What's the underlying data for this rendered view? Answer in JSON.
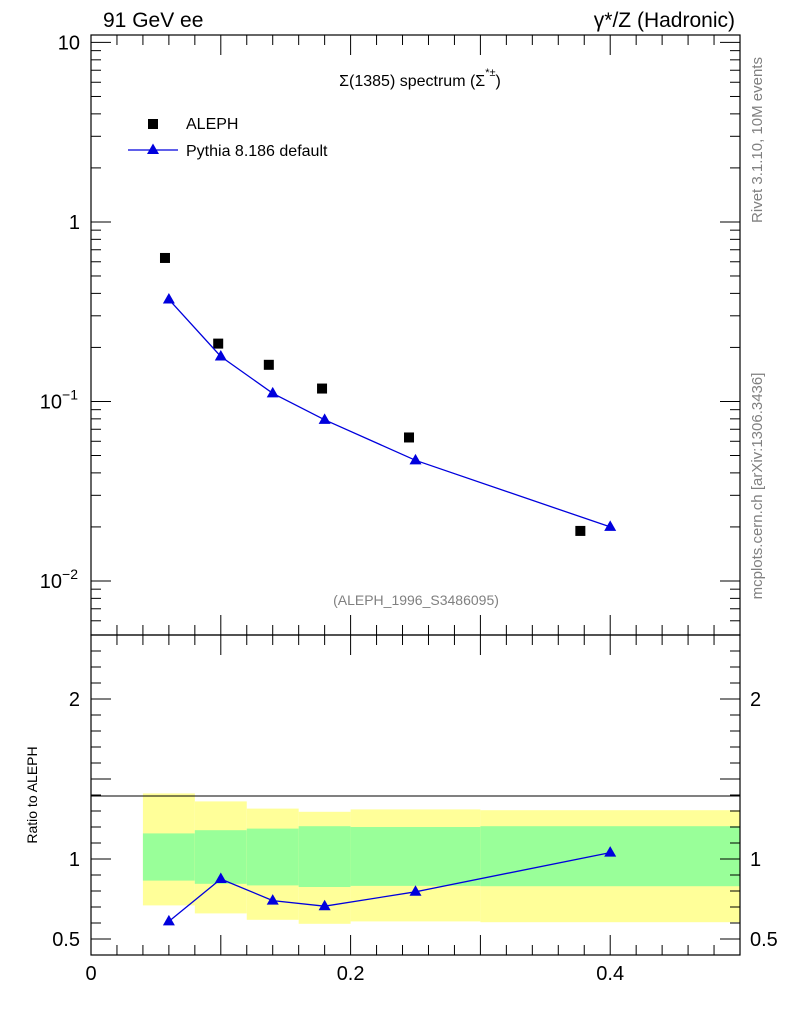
{
  "header": {
    "left": "91 GeV ee",
    "right": "γ*/Z (Hadronic)"
  },
  "side_labels": {
    "rivet": "Rivet 3.1.10,  10M events",
    "mcplots": "mcplots.cern.ch [arXiv:1306.3436]"
  },
  "colors": {
    "data": "#000000",
    "mc": "#0000dd",
    "band_inner": "#99ff99",
    "band_outer": "#ffff99"
  },
  "chart_data": [
    {
      "type": "scatter",
      "panel": "main",
      "title": "Σ(1385) spectrum (Σ*±)",
      "title_main": "Σ(1385) spectrum (Σ",
      "title_sup": "*±",
      "title_close": ")",
      "watermark": "(ALEPH_1996_S3486095)",
      "yscale": "log",
      "xlim": [
        0,
        0.5
      ],
      "ylim": [
        0.005,
        11
      ],
      "ytick_labels": [
        {
          "value": 10,
          "base": "10",
          "exp": ""
        },
        {
          "value": 1,
          "base": "1",
          "exp": ""
        },
        {
          "value": 0.1,
          "base": "10",
          "exp": "−1"
        },
        {
          "value": 0.01,
          "base": "10",
          "exp": "−2"
        }
      ],
      "legend": {
        "position": "top-left",
        "entries": [
          "ALEPH",
          "Pythia 8.186 default"
        ]
      },
      "series": [
        {
          "name": "ALEPH",
          "marker": "square",
          "x": [
            0.057,
            0.098,
            0.137,
            0.178,
            0.245,
            0.377
          ],
          "y": [
            0.63,
            0.21,
            0.16,
            0.118,
            0.063,
            0.019
          ]
        },
        {
          "name": "Pythia 8.186 default",
          "marker": "triangle",
          "x": [
            0.06,
            0.1,
            0.14,
            0.18,
            0.25,
            0.4
          ],
          "y": [
            0.37,
            0.178,
            0.111,
            0.079,
            0.047,
            0.02
          ]
        }
      ]
    },
    {
      "type": "line",
      "panel": "ratio",
      "ylabel": "Ratio to ALEPH",
      "xlim": [
        0,
        0.5
      ],
      "ylim": [
        0.4,
        2.4
      ],
      "xtick_labels": [
        {
          "value": 0,
          "label": "0"
        },
        {
          "value": 0.2,
          "label": "0.2"
        },
        {
          "value": 0.4,
          "label": "0.4"
        }
      ],
      "ytick_labels": [
        {
          "value": 2,
          "label": "2"
        },
        {
          "value": 1,
          "label": "1"
        },
        {
          "value": 0.5,
          "label": "0.5"
        }
      ],
      "bands": [
        {
          "x0": 0.04,
          "x1": 0.08,
          "outer": [
            0.71,
            1.41
          ],
          "inner": [
            0.865,
            1.16
          ]
        },
        {
          "x0": 0.08,
          "x1": 0.12,
          "outer": [
            0.66,
            1.36
          ],
          "inner": [
            0.845,
            1.18
          ]
        },
        {
          "x0": 0.12,
          "x1": 0.16,
          "outer": [
            0.62,
            1.315
          ],
          "inner": [
            0.835,
            1.19
          ]
        },
        {
          "x0": 0.16,
          "x1": 0.2,
          "outer": [
            0.595,
            1.295
          ],
          "inner": [
            0.825,
            1.205
          ]
        },
        {
          "x0": 0.2,
          "x1": 0.3,
          "outer": [
            0.61,
            1.31
          ],
          "inner": [
            0.832,
            1.2
          ]
        },
        {
          "x0": 0.3,
          "x1": 0.5,
          "outer": [
            0.605,
            1.305
          ],
          "inner": [
            0.83,
            1.205
          ]
        }
      ],
      "series": [
        {
          "name": "Pythia 8.186 default / ALEPH",
          "marker": "triangle",
          "x": [
            0.06,
            0.1,
            0.14,
            0.18,
            0.25,
            0.4
          ],
          "y": [
            0.61,
            0.875,
            0.74,
            0.705,
            0.795,
            1.04
          ]
        }
      ]
    }
  ]
}
